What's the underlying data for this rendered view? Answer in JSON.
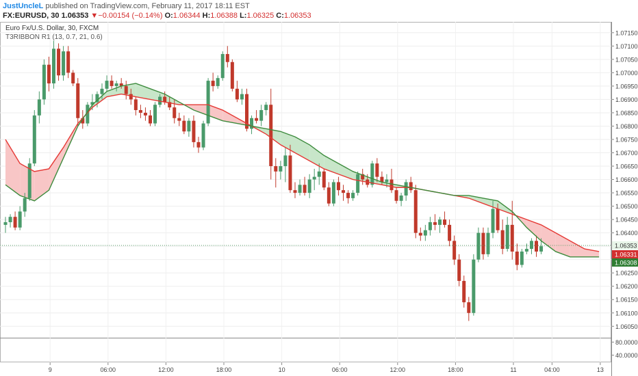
{
  "header": {
    "author": "JustUncleL",
    "published_text": " published on TradingView.com, February 11, 2017 18:11 EST",
    "symbol": "FX:EURUSD, 30",
    "last_price": "1.06353",
    "change_arrow": "▼",
    "change": "−0.00154 (−0.14%)",
    "open_label": "O:",
    "open": "1.06344",
    "high_label": "H:",
    "high": "1.06388",
    "low_label": "L:",
    "low": "1.06325",
    "close_label": "C:",
    "close": "1.06353"
  },
  "legend": {
    "instrument": "Euro Fx/U.S. Dollar, 30, FXCM",
    "indicator": "T3RIBBON R1 (13, 0.7, 21, 0.6)"
  },
  "colors": {
    "up": "#4a9a6a",
    "down": "#c0392b",
    "fast_line": "#3d8b3d",
    "slow_line": "#e53935",
    "fill_bull": "#c8e6c9",
    "fill_bear": "#f8c6c6",
    "price_tag": "#e8f5e9",
    "tag_red": "#d32f2f",
    "tag_green": "#2e7d32"
  },
  "chart_data": {
    "type": "candlestick",
    "y_ticks": [
      "1.07150",
      "1.07100",
      "1.07050",
      "1.07000",
      "1.06950",
      "1.06900",
      "1.06850",
      "1.06800",
      "1.06750",
      "1.06700",
      "1.06650",
      "1.06600",
      "1.06550",
      "1.06500",
      "1.06450",
      "1.06400",
      "1.06350",
      "1.06300",
      "1.06250",
      "1.06200",
      "1.06150",
      "1.06100",
      "1.06050"
    ],
    "ylim": [
      1.0602,
      1.0717
    ],
    "x_ticks": [
      {
        "label": "9",
        "bar": 4
      },
      {
        "label": "06:00",
        "bar": 16
      },
      {
        "label": "12:00",
        "bar": 28
      },
      {
        "label": "18:00",
        "bar": 40
      },
      {
        "label": "10",
        "bar": 52
      },
      {
        "label": "06:00",
        "bar": 64
      },
      {
        "label": "12:00",
        "bar": 76
      },
      {
        "label": "18:00",
        "bar": 88
      },
      {
        "label": "11",
        "bar": 100
      },
      {
        "label": "04:00",
        "bar": 108
      },
      {
        "label": "13",
        "bar": 118
      }
    ],
    "ohlc": [
      [
        1.0643,
        1.0646,
        1.064,
        1.0644
      ],
      [
        1.0644,
        1.0647,
        1.0642,
        1.0646
      ],
      [
        1.0646,
        1.0648,
        1.0641,
        1.0642
      ],
      [
        1.0642,
        1.065,
        1.0641,
        1.0648
      ],
      [
        1.0648,
        1.0655,
        1.0646,
        1.0653
      ],
      [
        1.0653,
        1.0668,
        1.0652,
        1.0666
      ],
      [
        1.0666,
        1.0686,
        1.0665,
        1.0684
      ],
      [
        1.0684,
        1.0693,
        1.0681,
        1.069
      ],
      [
        1.069,
        1.0705,
        1.0688,
        1.0703
      ],
      [
        1.0703,
        1.0706,
        1.0693,
        1.0696
      ],
      [
        1.0696,
        1.0712,
        1.0694,
        1.0709
      ],
      [
        1.0709,
        1.0711,
        1.0697,
        1.0699
      ],
      [
        1.0699,
        1.071,
        1.0697,
        1.0708
      ],
      [
        1.0708,
        1.071,
        1.0698,
        1.07
      ],
      [
        1.07,
        1.0701,
        1.0695,
        1.0696
      ],
      [
        1.0696,
        1.0698,
        1.068,
        1.0683
      ],
      [
        1.0683,
        1.0686,
        1.0679,
        1.0681
      ],
      [
        1.0681,
        1.0689,
        1.068,
        1.0688
      ],
      [
        1.0688,
        1.0692,
        1.0686,
        1.0689
      ],
      [
        1.0689,
        1.0693,
        1.0687,
        1.0692
      ],
      [
        1.0692,
        1.0696,
        1.069,
        1.0694
      ],
      [
        1.0694,
        1.0699,
        1.0693,
        1.0697
      ],
      [
        1.0697,
        1.0699,
        1.0694,
        1.0695
      ],
      [
        1.0695,
        1.0697,
        1.0693,
        1.0696
      ],
      [
        1.0696,
        1.0698,
        1.0694,
        1.0695
      ],
      [
        1.0695,
        1.0697,
        1.069,
        1.0692
      ],
      [
        1.0692,
        1.0694,
        1.0688,
        1.069
      ],
      [
        1.069,
        1.0691,
        1.0684,
        1.0686
      ],
      [
        1.0686,
        1.0688,
        1.0683,
        1.0685
      ],
      [
        1.0685,
        1.0687,
        1.0682,
        1.0684
      ],
      [
        1.0684,
        1.0686,
        1.068,
        1.0681
      ],
      [
        1.0681,
        1.0689,
        1.068,
        1.0688
      ],
      [
        1.0688,
        1.0692,
        1.0687,
        1.0691
      ],
      [
        1.0691,
        1.0693,
        1.0688,
        1.0689
      ],
      [
        1.0689,
        1.0691,
        1.0686,
        1.0687
      ],
      [
        1.0687,
        1.069,
        1.0681,
        1.0683
      ],
      [
        1.0683,
        1.0685,
        1.068,
        1.0682
      ],
      [
        1.0682,
        1.0684,
        1.0677,
        1.0678
      ],
      [
        1.0678,
        1.0683,
        1.0676,
        1.0682
      ],
      [
        1.0682,
        1.0684,
        1.0672,
        1.0674
      ],
      [
        1.0674,
        1.0676,
        1.067,
        1.0672
      ],
      [
        1.0672,
        1.0682,
        1.0671,
        1.0681
      ],
      [
        1.0681,
        1.0698,
        1.068,
        1.0697
      ],
      [
        1.0697,
        1.07,
        1.0693,
        1.0695
      ],
      [
        1.0695,
        1.0699,
        1.0694,
        1.0698
      ],
      [
        1.0698,
        1.0708,
        1.0697,
        1.0707
      ],
      [
        1.0707,
        1.071,
        1.0702,
        1.0704
      ],
      [
        1.0704,
        1.0705,
        1.0693,
        1.0694
      ],
      [
        1.0694,
        1.0697,
        1.0689,
        1.069
      ],
      [
        1.069,
        1.0694,
        1.0688,
        1.0692
      ],
      [
        1.0692,
        1.0694,
        1.0678,
        1.0679
      ],
      [
        1.0679,
        1.0684,
        1.0677,
        1.0683
      ],
      [
        1.0683,
        1.0686,
        1.0681,
        1.0682
      ],
      [
        1.0682,
        1.0688,
        1.068,
        1.0686
      ],
      [
        1.0686,
        1.0689,
        1.0684,
        1.0688
      ],
      [
        1.0688,
        1.0694,
        1.066,
        1.0665
      ],
      [
        1.0665,
        1.0668,
        1.0657,
        1.0663
      ],
      [
        1.0663,
        1.0667,
        1.066,
        1.0665
      ],
      [
        1.0665,
        1.0672,
        1.0659,
        1.0669
      ],
      [
        1.0669,
        1.0673,
        1.0655,
        1.0656
      ],
      [
        1.0656,
        1.0659,
        1.0653,
        1.0655
      ],
      [
        1.0655,
        1.066,
        1.0654,
        1.0658
      ],
      [
        1.0658,
        1.0661,
        1.0654,
        1.0655
      ],
      [
        1.0655,
        1.0662,
        1.0653,
        1.066
      ],
      [
        1.066,
        1.0664,
        1.0656,
        1.0661
      ],
      [
        1.0661,
        1.0666,
        1.0658,
        1.0663
      ],
      [
        1.0663,
        1.0664,
        1.0656,
        1.0657
      ],
      [
        1.0657,
        1.0659,
        1.065,
        1.0651
      ],
      [
        1.0651,
        1.066,
        1.065,
        1.0659
      ],
      [
        1.0659,
        1.0661,
        1.0654,
        1.0656
      ],
      [
        1.0656,
        1.0658,
        1.0652,
        1.0655
      ],
      [
        1.0655,
        1.0656,
        1.0651,
        1.0653
      ],
      [
        1.0653,
        1.0656,
        1.0652,
        1.0655
      ],
      [
        1.0655,
        1.0663,
        1.0654,
        1.0662
      ],
      [
        1.0662,
        1.0664,
        1.0658,
        1.066
      ],
      [
        1.066,
        1.0662,
        1.0657,
        1.0658
      ],
      [
        1.0658,
        1.0667,
        1.0657,
        1.0666
      ],
      [
        1.0666,
        1.0668,
        1.0659,
        1.0661
      ],
      [
        1.0661,
        1.0663,
        1.0658,
        1.0659
      ],
      [
        1.0659,
        1.0662,
        1.0657,
        1.066
      ],
      [
        1.066,
        1.0664,
        1.0655,
        1.0656
      ],
      [
        1.0656,
        1.0657,
        1.0651,
        1.0652
      ],
      [
        1.0652,
        1.0655,
        1.065,
        1.0654
      ],
      [
        1.0654,
        1.066,
        1.0652,
        1.0659
      ],
      [
        1.0659,
        1.0661,
        1.0655,
        1.0656
      ],
      [
        1.0656,
        1.0658,
        1.0638,
        1.064
      ],
      [
        1.064,
        1.0642,
        1.0637,
        1.0639
      ],
      [
        1.0639,
        1.0643,
        1.0637,
        1.0641
      ],
      [
        1.0641,
        1.0646,
        1.0639,
        1.0644
      ],
      [
        1.0644,
        1.0647,
        1.0641,
        1.0643
      ],
      [
        1.0643,
        1.0646,
        1.064,
        1.0645
      ],
      [
        1.0645,
        1.0648,
        1.0642,
        1.0643
      ],
      [
        1.0643,
        1.0645,
        1.0635,
        1.0637
      ],
      [
        1.0637,
        1.0639,
        1.0628,
        1.063
      ],
      [
        1.063,
        1.0632,
        1.062,
        1.0622
      ],
      [
        1.0622,
        1.0624,
        1.0612,
        1.0614
      ],
      [
        1.0614,
        1.0616,
        1.0607,
        1.061
      ],
      [
        1.061,
        1.0632,
        1.0609,
        1.063
      ],
      [
        1.063,
        1.0642,
        1.0629,
        1.064
      ],
      [
        1.064,
        1.0642,
        1.063,
        1.0632
      ],
      [
        1.0632,
        1.0642,
        1.0631,
        1.064
      ],
      [
        1.064,
        1.0652,
        1.0638,
        1.0649
      ],
      [
        1.0649,
        1.0651,
        1.064,
        1.0641
      ],
      [
        1.0641,
        1.0645,
        1.0632,
        1.0634
      ],
      [
        1.0634,
        1.0646,
        1.0633,
        1.0643
      ],
      [
        1.0643,
        1.0652,
        1.063,
        1.0633
      ],
      [
        1.0633,
        1.0636,
        1.0626,
        1.0628
      ],
      [
        1.0628,
        1.0634,
        1.0627,
        1.0633
      ],
      [
        1.0633,
        1.0636,
        1.0632,
        1.0634
      ],
      [
        1.0634,
        1.0638,
        1.0632,
        1.0637
      ],
      [
        1.0637,
        1.0639,
        1.0631,
        1.0633
      ],
      [
        1.0633,
        1.0638,
        1.0632,
        1.0635
      ]
    ],
    "fast_line": [
      1.0658,
      1.0654,
      1.0652,
      1.0656,
      1.0668,
      1.068,
      1.0688,
      1.0693,
      1.0695,
      1.0696,
      1.0694,
      1.0692,
      1.0689,
      1.0686,
      1.0684,
      1.0682,
      1.0681,
      1.068,
      1.0679,
      1.0678,
      1.0676,
      1.0673,
      1.0669,
      1.0666,
      1.0663,
      1.0661,
      1.0659,
      1.0658,
      1.0657,
      1.0656,
      1.0655,
      1.0654,
      1.0654,
      1.0653,
      1.0652,
      1.0648,
      1.0642,
      1.0637,
      1.0633,
      1.0631,
      1.0631,
      1.0631
    ],
    "slow_line": [
      1.0675,
      1.0666,
      1.0663,
      1.0664,
      1.0672,
      1.0681,
      1.0687,
      1.0691,
      1.0692,
      1.0691,
      1.069,
      1.0689,
      1.0688,
      1.0688,
      1.0688,
      1.0686,
      1.0683,
      1.068,
      1.0677,
      1.0673,
      1.067,
      1.0667,
      1.0664,
      1.0662,
      1.066,
      1.0659,
      1.0658,
      1.0657,
      1.0657,
      1.0656,
      1.0655,
      1.0654,
      1.0653,
      1.0651,
      1.0649,
      1.0647,
      1.0645,
      1.0643,
      1.064,
      1.0637,
      1.0634,
      1.0633
    ],
    "line_bar_step": 3,
    "current_price": {
      "value": 1.06353,
      "label": "1.06353"
    },
    "slow_tag": {
      "value": 1.06331,
      "label": "1.06331"
    },
    "fast_tag": {
      "value": 1.06308,
      "label": "1.06308"
    },
    "lower_pane": {
      "ticks": [
        {
          "value": 80,
          "label": "80.0000"
        },
        {
          "value": 40,
          "label": "40.0000"
        }
      ],
      "ylim": [
        20,
        85
      ]
    }
  }
}
